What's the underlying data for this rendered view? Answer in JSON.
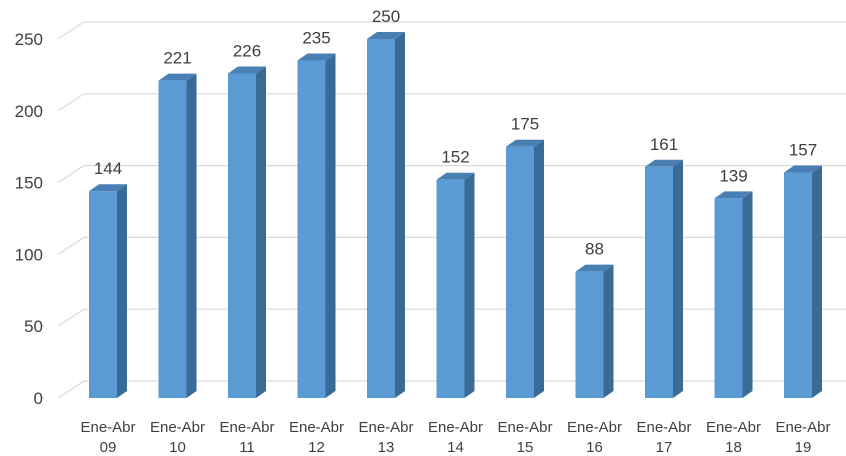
{
  "chart_data": {
    "type": "bar",
    "title": "",
    "xlabel": "",
    "ylabel": "",
    "categories": [
      [
        "Ene-Abr",
        "09"
      ],
      [
        "Ene-Abr",
        "10"
      ],
      [
        "Ene-Abr",
        "11"
      ],
      [
        "Ene-Abr",
        "12"
      ],
      [
        "Ene-Abr",
        "13"
      ],
      [
        "Ene-Abr",
        "14"
      ],
      [
        "Ene-Abr",
        "15"
      ],
      [
        "Ene-Abr",
        "16"
      ],
      [
        "Ene-Abr",
        "17"
      ],
      [
        "Ene-Abr",
        "18"
      ],
      [
        "Ene-Abr",
        "19"
      ]
    ],
    "values": [
      144,
      221,
      226,
      235,
      250,
      152,
      175,
      88,
      161,
      139,
      157
    ],
    "ylim": [
      0,
      250
    ],
    "yticks": [
      0,
      50,
      100,
      150,
      200,
      250
    ],
    "grid": true,
    "legend": "none",
    "style": "3d-column",
    "colors": {
      "bar_front": "#5b9bd5",
      "bar_side": "#3a6a96",
      "bar_top": "#4a7fb4",
      "grid": "#d9d9d9",
      "text": "#404040"
    }
  }
}
